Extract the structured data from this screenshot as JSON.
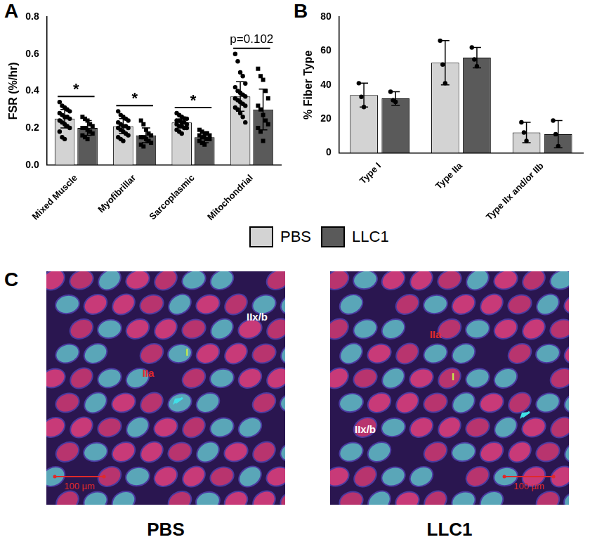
{
  "chart_data": [
    {
      "type": "bar",
      "panel_label": "A",
      "y_label": "FSR (%/hr)",
      "categories": [
        "Mixed Muscle",
        "Myofibrillar",
        "Sarcoplasmic",
        "Mitochondrial"
      ],
      "ylim": [
        0,
        0.8
      ],
      "yticks": [
        {
          "value": 0,
          "label": "0.0"
        },
        0.2,
        0.4,
        0.6,
        0.8
      ],
      "grid": false,
      "series": [
        {
          "name": "PBS",
          "color": "#d3d3d3",
          "marker": "circle",
          "values": [
            0.25,
            0.21,
            0.23,
            0.37
          ],
          "errors": [
            0.05,
            0.04,
            0.03,
            0.08
          ],
          "points": [
            [
              0.34,
              0.32,
              0.31,
              0.3,
              0.29,
              0.28,
              0.27,
              0.26,
              0.26,
              0.25,
              0.24,
              0.23,
              0.22,
              0.21,
              0.2,
              0.18,
              0.15,
              0.14
            ],
            [
              0.29,
              0.27,
              0.26,
              0.25,
              0.24,
              0.23,
              0.22,
              0.21,
              0.21,
              0.2,
              0.2,
              0.19,
              0.18,
              0.17,
              0.16,
              0.15,
              0.14,
              0.13
            ],
            [
              0.28,
              0.27,
              0.26,
              0.25,
              0.25,
              0.24,
              0.24,
              0.23,
              0.23,
              0.22,
              0.22,
              0.21,
              0.21,
              0.2,
              0.2,
              0.19,
              0.18,
              0.17
            ],
            [
              0.6,
              0.56,
              0.5,
              0.48,
              0.44,
              0.42,
              0.4,
              0.39,
              0.38,
              0.37,
              0.36,
              0.35,
              0.34,
              0.33,
              0.32,
              0.31,
              0.3,
              0.28,
              0.26,
              0.23
            ]
          ]
        },
        {
          "name": "LLC1",
          "color": "#5a5a5a",
          "marker": "square",
          "values": [
            0.2,
            0.16,
            0.15,
            0.3
          ],
          "errors": [
            0.04,
            0.04,
            0.03,
            0.11
          ],
          "points": [
            [
              0.26,
              0.25,
              0.24,
              0.22,
              0.21,
              0.2,
              0.2,
              0.19,
              0.18,
              0.17,
              0.16,
              0.15,
              0.14
            ],
            [
              0.24,
              0.22,
              0.19,
              0.17,
              0.16,
              0.15,
              0.15,
              0.14,
              0.13,
              0.12,
              0.11,
              0.1
            ],
            [
              0.19,
              0.18,
              0.17,
              0.17,
              0.16,
              0.16,
              0.15,
              0.15,
              0.14,
              0.14,
              0.13,
              0.12,
              0.11
            ],
            [
              0.52,
              0.48,
              0.46,
              0.4,
              0.36,
              0.32,
              0.3,
              0.27,
              0.24,
              0.22,
              0.2,
              0.18,
              0.13
            ]
          ]
        }
      ],
      "annotations": [
        {
          "category": "Mixed Muscle",
          "text": "*"
        },
        {
          "category": "Myofibrillar",
          "text": "*"
        },
        {
          "category": "Sarcoplasmic",
          "text": "*"
        },
        {
          "category": "Mitochondrial",
          "text": "p=0.102"
        }
      ]
    },
    {
      "type": "bar",
      "panel_label": "B",
      "y_label": "% Fiber Type",
      "categories": [
        "Type I",
        "Type IIa",
        "Type IIx and/or IIb"
      ],
      "ylim": [
        0,
        80
      ],
      "yticks": [
        0,
        20,
        40,
        60,
        80
      ],
      "grid": false,
      "series": [
        {
          "name": "PBS",
          "color": "#d3d3d3",
          "marker": "circle",
          "values": [
            34,
            53,
            12
          ],
          "errors": [
            7,
            13,
            6
          ],
          "points": [
            [
              41,
              33,
              27
            ],
            [
              66,
              52,
              41
            ],
            [
              18,
              12,
              7
            ]
          ]
        },
        {
          "name": "LLC1",
          "color": "#5a5a5a",
          "marker": "circle",
          "values": [
            32,
            56,
            11
          ],
          "errors": [
            4,
            6,
            8
          ],
          "points": [
            [
              36,
              31,
              30
            ],
            [
              62,
              55,
              51
            ],
            [
              19,
              11,
              4
            ]
          ]
        }
      ]
    }
  ],
  "panel_c": {
    "panel_label": "C",
    "images": [
      {
        "label": "PBS",
        "fiber_labels": [
          "I",
          "IIa",
          "IIx/b"
        ],
        "scale_bar": "100 µm"
      },
      {
        "label": "LLC1",
        "fiber_labels": [
          "I",
          "IIa",
          "IIx/b"
        ],
        "scale_bar": "100 µm"
      }
    ]
  }
}
